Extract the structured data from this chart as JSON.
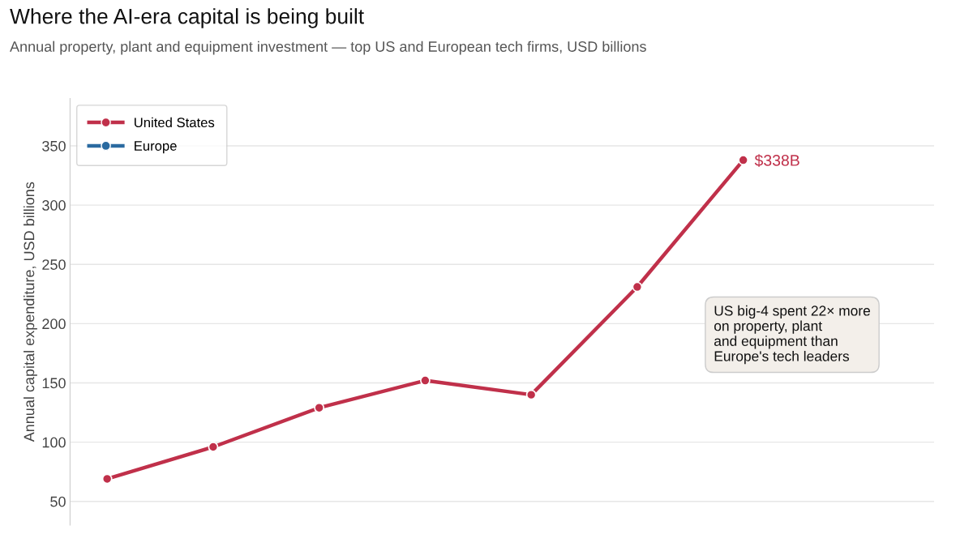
{
  "chart_data": {
    "type": "line",
    "title": "Where the AI-era capital is being built",
    "subtitle": "Annual property, plant and equipment investment — top US and European tech firms, USD billions",
    "ylabel": "Annual capital expenditure, USD billions",
    "categories": [
      null,
      null,
      null,
      null,
      null,
      null,
      null
    ],
    "series": [
      {
        "name": "United States",
        "color": "#c0304a",
        "values": [
          69,
          96,
          129,
          152,
          140,
          231,
          338
        ]
      },
      {
        "name": "Europe",
        "color": "#2a6aa0",
        "values": [
          null,
          null,
          null,
          null,
          null,
          null,
          null
        ]
      }
    ],
    "ylim": [
      30,
      390
    ],
    "yticks": [
      50,
      100,
      150,
      200,
      250,
      300,
      350
    ],
    "grid": "y",
    "legend": "top left",
    "marker": "circle",
    "line_style": "solid",
    "annotations": [
      "$338B",
      "US big-4 spent 22× more\non property, plant\nand equipment than\nEurope's tech leaders"
    ]
  }
}
